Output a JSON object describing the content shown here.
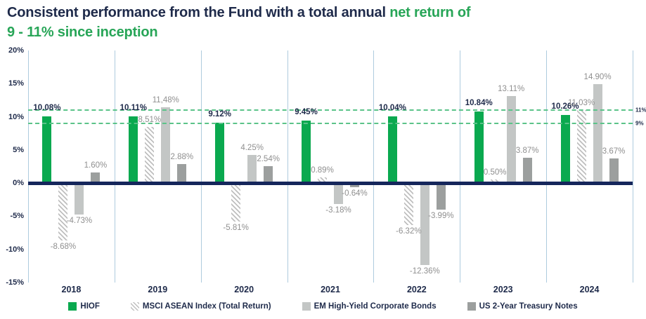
{
  "title": {
    "line1_dark": "Consistent performance from the Fund with a total annual",
    "line1_green": "net return of",
    "line2_green": "9 - 11% since inception"
  },
  "colors": {
    "navy": "#1E2A4A",
    "title_green": "#27A557",
    "bar_green": "#0AA94F",
    "dash_green": "#5BC389",
    "light_gray_bar": "#C3C6C5",
    "dark_gray_bar": "#9C9F9E",
    "hatch_gray": "#BFBFBF",
    "separator_blue": "#AECBDE",
    "gray_label": "#8F8F8F",
    "zero_line_navy": "#15265B"
  },
  "chart_data": {
    "type": "bar",
    "categories": [
      "2018",
      "2019",
      "2020",
      "2021",
      "2022",
      "2023",
      "2024"
    ],
    "series": [
      {
        "name": "HIOF",
        "slug": "hiof",
        "style": "solid-green",
        "values": [
          10.08,
          10.11,
          9.12,
          9.45,
          10.04,
          10.84,
          10.26
        ],
        "labels": [
          "10.08%",
          "10.11%",
          "9.12%",
          "9.45%",
          "10.04%",
          "10.84%",
          "10.26%"
        ]
      },
      {
        "name": "MSCI ASEAN Index (Total Return)",
        "slug": "msci-asean-index",
        "style": "diagonal-hatch",
        "values": [
          -8.68,
          8.51,
          -5.81,
          0.89,
          -6.32,
          0.5,
          11.03
        ],
        "labels": [
          "-8.68%",
          "8.51%",
          "-5.81%",
          "0.89%",
          "-6.32%",
          "0.50%",
          "11.03%"
        ]
      },
      {
        "name": "EM High-Yield Corporate Bonds",
        "slug": "em-high-yield-corporate-bonds",
        "style": "solid-light-gray",
        "values": [
          -4.73,
          11.48,
          4.25,
          -3.18,
          -12.36,
          13.11,
          14.9
        ],
        "labels": [
          "-4.73%",
          "11,48%",
          "4.25%",
          "-3.18%",
          "-12.36%",
          "13.11%",
          "14.90%"
        ]
      },
      {
        "name": "US 2-Year Treasury Notes",
        "slug": "us-2-year-treasury-notes",
        "style": "solid-dark-gray",
        "values": [
          1.6,
          2.88,
          2.54,
          -0.64,
          -3.99,
          3.87,
          3.67
        ],
        "labels": [
          "1.60%",
          "2.88%",
          "2.54%",
          "-0.64%",
          "-3.99%",
          "3.87%",
          "3.67%"
        ]
      }
    ],
    "ylim": [
      -15,
      20
    ],
    "yticks": [
      "20%",
      "15%",
      "10%",
      "5%",
      "0%",
      "-5%",
      "-10%",
      "-15%"
    ],
    "ytick_values": [
      20,
      15,
      10,
      5,
      0,
      -5,
      -10,
      -15
    ],
    "reference_lines": [
      {
        "value": 11,
        "label": "11%"
      },
      {
        "value": 9,
        "label": "9%"
      }
    ],
    "legend_position": "bottom",
    "grid": "vertical-group-separators"
  }
}
